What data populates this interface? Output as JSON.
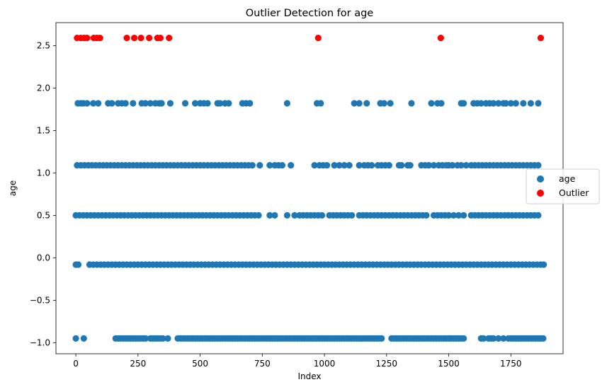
{
  "chart_data": {
    "type": "scatter",
    "title": "Outlier Detection for age",
    "xlabel": "Index",
    "ylabel": "age",
    "xlim": [
      -80,
      1960
    ],
    "ylim": [
      -1.13,
      2.77
    ],
    "x_ticks": [
      0,
      250,
      500,
      750,
      1000,
      1250,
      1500,
      1750
    ],
    "y_ticks": [
      -1.0,
      -0.5,
      0.0,
      0.5,
      1.0,
      1.5,
      2.0,
      2.5
    ],
    "x_tick_labels": [
      "0",
      "250",
      "500",
      "750",
      "1000",
      "1250",
      "1500",
      "1750"
    ],
    "y_tick_labels": [
      "−1.0",
      "−0.5",
      "0.0",
      "0.5",
      "1.0",
      "1.5",
      "2.0",
      "2.5"
    ],
    "grid": false,
    "legend_position": "center-right",
    "series": [
      {
        "name": "age",
        "color": "#1f77b4",
        "levels": [
          {
            "y": -0.95,
            "x": [
              0,
              32,
              160,
              170,
              180,
              190,
              200,
              210,
              220,
              230,
              240,
              250,
              260,
              270,
              280,
              300,
              310,
              320,
              330,
              340,
              350,
              370,
              410,
              420,
              430,
              440,
              450,
              460,
              470,
              480,
              490,
              500,
              510,
              520,
              530,
              540,
              550,
              560,
              570,
              580,
              590,
              600,
              610,
              620,
              630,
              640,
              650,
              660,
              670,
              680,
              690,
              700,
              710,
              720,
              730,
              740,
              750,
              760,
              770,
              780,
              790,
              800,
              810,
              820,
              830,
              840,
              850,
              860,
              870,
              880,
              890,
              900,
              910,
              920,
              930,
              940,
              950,
              960,
              970,
              980,
              990,
              1000,
              1010,
              1020,
              1030,
              1040,
              1050,
              1060,
              1070,
              1080,
              1090,
              1100,
              1110,
              1120,
              1130,
              1140,
              1150,
              1160,
              1170,
              1180,
              1190,
              1200,
              1210,
              1220,
              1230,
              1270,
              1280,
              1290,
              1300,
              1310,
              1320,
              1330,
              1340,
              1350,
              1360,
              1370,
              1380,
              1390,
              1400,
              1410,
              1420,
              1430,
              1440,
              1450,
              1460,
              1470,
              1480,
              1490,
              1500,
              1510,
              1520,
              1530,
              1540,
              1550,
              1560,
              1630,
              1640,
              1660,
              1670,
              1680,
              1700,
              1720,
              1740,
              1750,
              1760,
              1770,
              1780,
              1790,
              1800,
              1810,
              1820,
              1830,
              1840,
              1850,
              1860,
              1870,
              1880
            ]
          },
          {
            "y": -0.08,
            "x": [
              0,
              10,
              55,
              70,
              85,
              100,
              115,
              130,
              145,
              160,
              175,
              190,
              205,
              220,
              235,
              250,
              265,
              280,
              295,
              310,
              325,
              340,
              355,
              370,
              385,
              400,
              415,
              430,
              445,
              460,
              475,
              490,
              505,
              520,
              535,
              550,
              565,
              580,
              595,
              610,
              625,
              640,
              655,
              670,
              685,
              700,
              715,
              730,
              745,
              760,
              775,
              790,
              805,
              820,
              835,
              850,
              865,
              880,
              895,
              910,
              925,
              940,
              955,
              970,
              985,
              1000,
              1015,
              1030,
              1045,
              1060,
              1075,
              1090,
              1105,
              1120,
              1135,
              1150,
              1165,
              1180,
              1195,
              1210,
              1225,
              1240,
              1255,
              1270,
              1285,
              1300,
              1315,
              1330,
              1345,
              1360,
              1375,
              1390,
              1405,
              1420,
              1435,
              1450,
              1465,
              1480,
              1495,
              1510,
              1525,
              1540,
              1555,
              1570,
              1585,
              1600,
              1615,
              1630,
              1645,
              1660,
              1675,
              1690,
              1705,
              1720,
              1735,
              1750,
              1765,
              1780,
              1795,
              1810,
              1825,
              1840,
              1855,
              1870,
              1882
            ]
          },
          {
            "y": 0.5,
            "x": [
              0,
              15,
              30,
              45,
              60,
              75,
              90,
              105,
              120,
              135,
              150,
              165,
              180,
              195,
              210,
              225,
              240,
              255,
              270,
              285,
              300,
              315,
              330,
              345,
              360,
              375,
              390,
              405,
              420,
              435,
              450,
              465,
              480,
              495,
              510,
              525,
              540,
              555,
              570,
              585,
              600,
              615,
              630,
              645,
              660,
              675,
              690,
              705,
              720,
              735,
              780,
              800,
              850,
              880,
              900,
              915,
              930,
              945,
              960,
              975,
              990,
              1020,
              1035,
              1050,
              1065,
              1080,
              1095,
              1110,
              1140,
              1155,
              1170,
              1185,
              1200,
              1215,
              1230,
              1245,
              1260,
              1275,
              1290,
              1305,
              1320,
              1335,
              1350,
              1365,
              1380,
              1395,
              1410,
              1440,
              1455,
              1470,
              1485,
              1500,
              1520,
              1540,
              1560,
              1590,
              1605,
              1620,
              1635,
              1650,
              1665,
              1680,
              1695,
              1710,
              1725,
              1740,
              1755,
              1770,
              1785,
              1800,
              1815,
              1830,
              1845,
              1860
            ]
          },
          {
            "y": 1.09,
            "x": [
              5,
              20,
              35,
              50,
              65,
              80,
              95,
              110,
              125,
              140,
              155,
              170,
              185,
              200,
              215,
              230,
              245,
              260,
              275,
              290,
              305,
              320,
              335,
              350,
              365,
              380,
              395,
              410,
              425,
              440,
              455,
              470,
              485,
              500,
              515,
              530,
              545,
              560,
              575,
              590,
              605,
              620,
              635,
              650,
              665,
              680,
              695,
              710,
              740,
              780,
              800,
              815,
              830,
              865,
              960,
              980,
              995,
              1010,
              1040,
              1060,
              1080,
              1100,
              1140,
              1160,
              1175,
              1190,
              1215,
              1230,
              1245,
              1260,
              1300,
              1310,
              1335,
              1345,
              1390,
              1405,
              1420,
              1440,
              1460,
              1475,
              1490,
              1500,
              1515,
              1535,
              1550,
              1570,
              1590,
              1605,
              1620,
              1635,
              1650,
              1665,
              1680,
              1695,
              1710,
              1725,
              1740,
              1755,
              1770,
              1785,
              1800,
              1815,
              1830,
              1845,
              1860
            ]
          },
          {
            "y": 1.82,
            "x": [
              8,
              20,
              30,
              45,
              70,
              90,
              130,
              145,
              170,
              185,
              200,
              230,
              265,
              280,
              300,
              320,
              335,
              345,
              380,
              440,
              480,
              500,
              515,
              530,
              570,
              580,
              600,
              615,
              670,
              685,
              700,
              850,
              970,
              985,
              1120,
              1140,
              1170,
              1225,
              1240,
              1265,
              1350,
              1430,
              1455,
              1470,
              1550,
              1560,
              1600,
              1615,
              1630,
              1650,
              1665,
              1680,
              1700,
              1720,
              1730,
              1750,
              1770,
              1800,
              1830,
              1860
            ]
          }
        ]
      },
      {
        "name": "Outlier",
        "color": "#ff0000",
        "levels": [
          {
            "y": 2.59,
            "x": [
              5,
              20,
              33,
              45,
              72,
              85,
              97,
              205,
              235,
              262,
              295,
              328,
              340,
              375,
              975,
              1468,
              1870
            ]
          }
        ]
      }
    ]
  }
}
